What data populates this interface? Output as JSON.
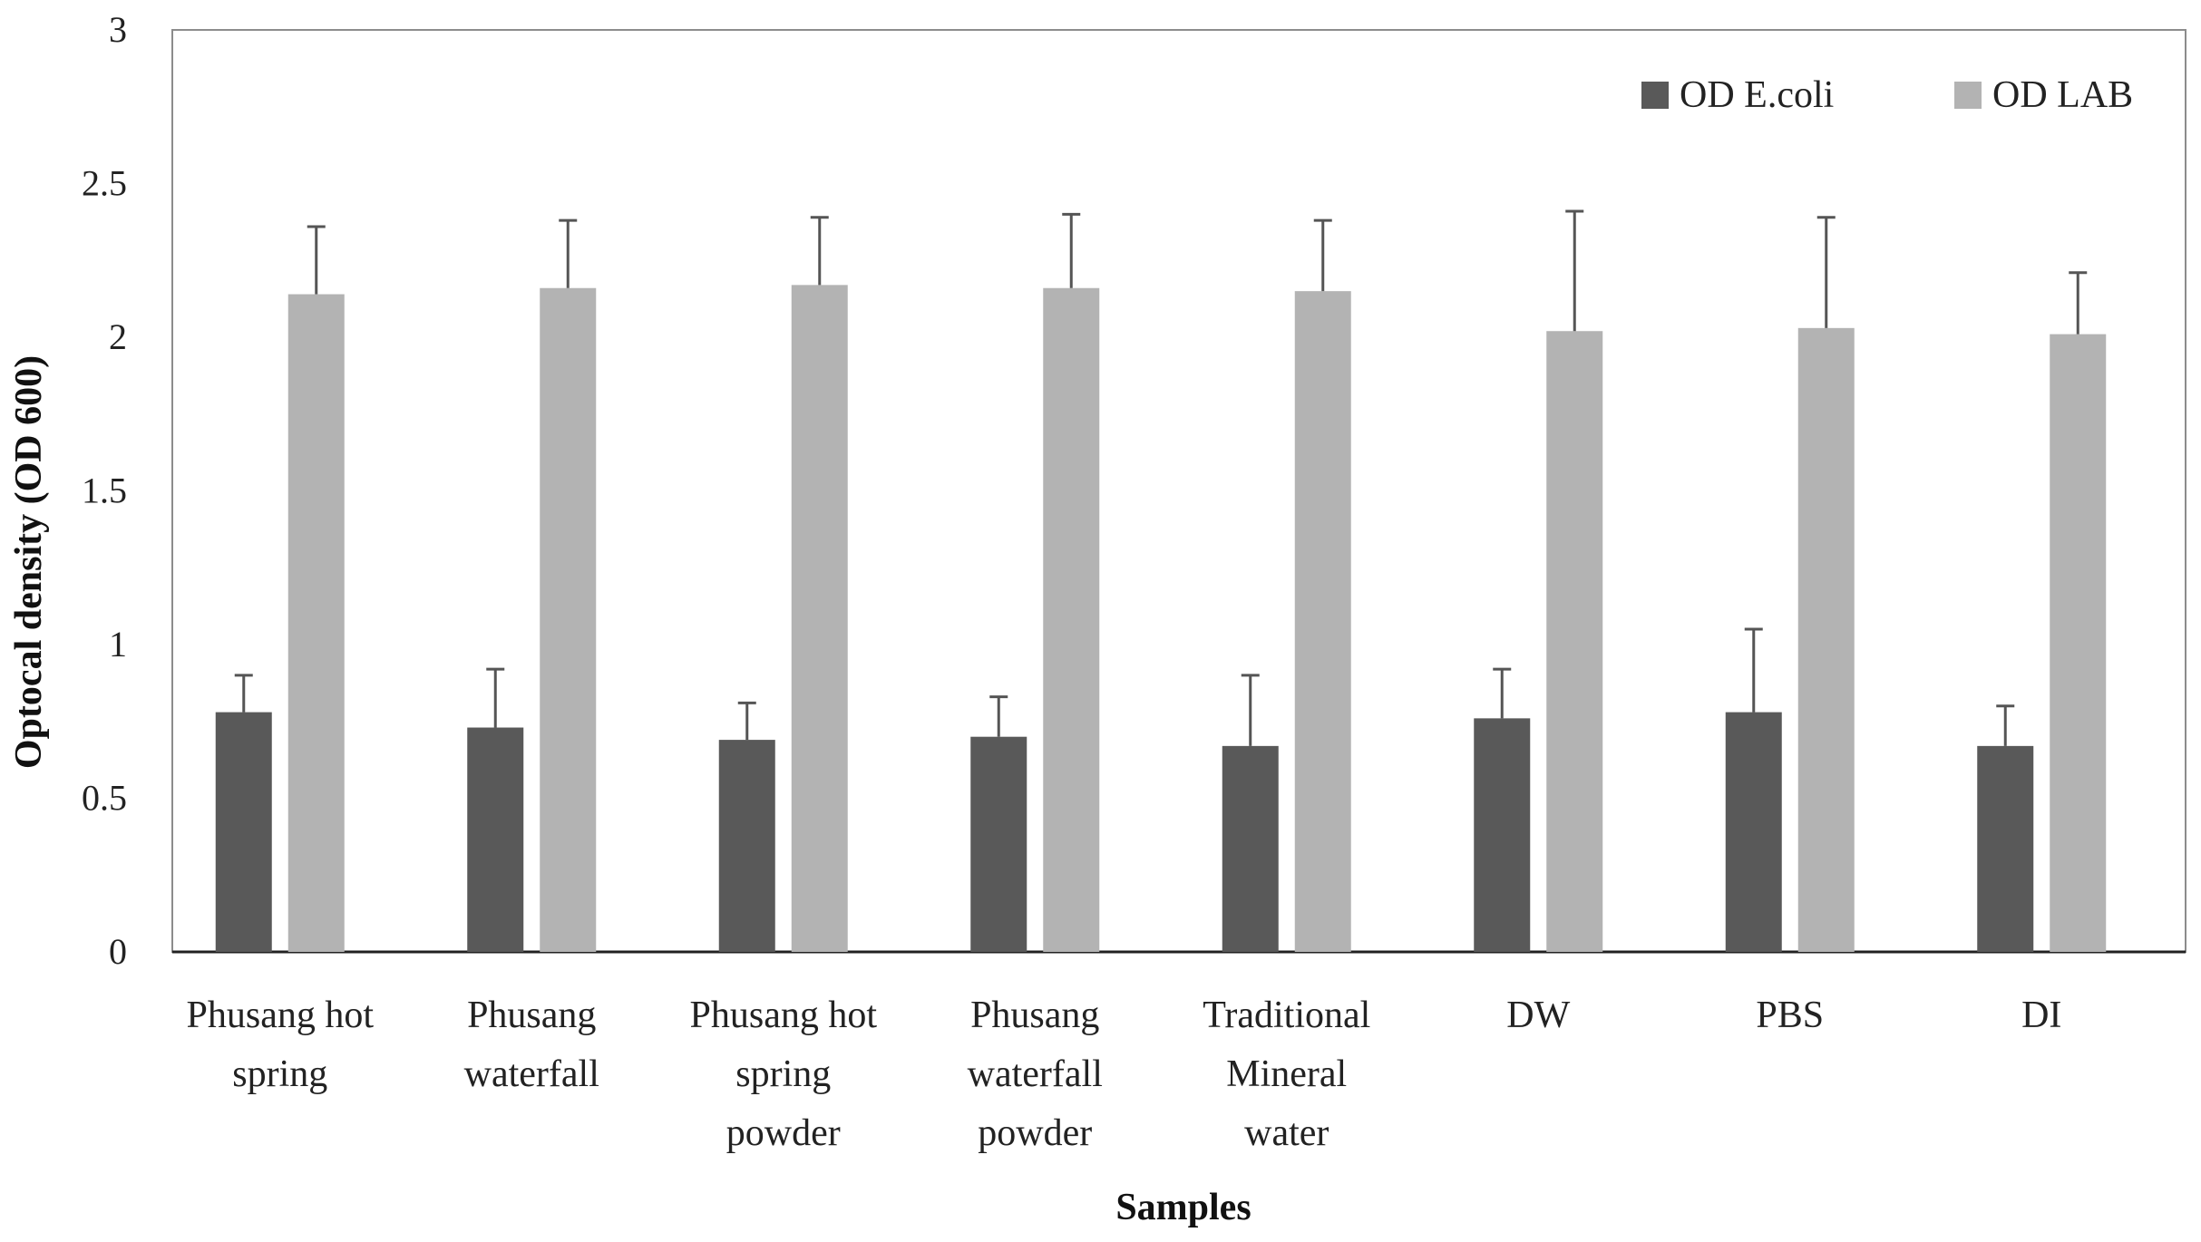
{
  "chart_data": {
    "type": "bar",
    "title": "",
    "xlabel": "Samples",
    "ylabel": "Optocal density (OD 600)",
    "ylim": [
      0,
      3
    ],
    "yticks": [
      "0",
      "0.5",
      "1",
      "1.5",
      "2",
      "2.5",
      "3"
    ],
    "grid": false,
    "legend_position": "top-right",
    "categories": [
      [
        "Phusang hot",
        "spring"
      ],
      [
        "Phusang",
        "waterfall"
      ],
      [
        "Phusang hot",
        "spring",
        "powder"
      ],
      [
        "Phusang",
        "waterfall",
        "powder"
      ],
      [
        "Traditional",
        "Mineral",
        "water"
      ],
      [
        "DW"
      ],
      [
        "PBS"
      ],
      [
        "DI"
      ]
    ],
    "series": [
      {
        "name": "OD E.coli",
        "color": "#595959",
        "values": [
          0.78,
          0.73,
          0.69,
          0.7,
          0.67,
          0.76,
          0.78,
          0.67
        ],
        "errors": [
          0.12,
          0.19,
          0.12,
          0.13,
          0.23,
          0.16,
          0.27,
          0.13
        ]
      },
      {
        "name": "OD LAB",
        "color": "#b3b3b3",
        "values": [
          2.14,
          2.16,
          2.17,
          2.16,
          2.15,
          2.02,
          2.03,
          2.01
        ],
        "errors": [
          0.22,
          0.22,
          0.22,
          0.24,
          0.23,
          0.39,
          0.36,
          0.2
        ]
      }
    ]
  }
}
